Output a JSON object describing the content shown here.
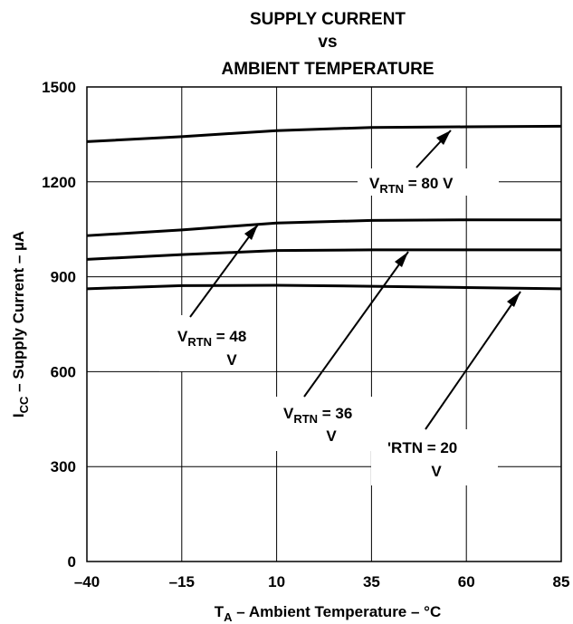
{
  "chart_data": {
    "type": "line",
    "title_lines": [
      "SUPPLY CURRENT",
      "vs",
      "AMBIENT TEMPERATURE"
    ],
    "xlabel": {
      "main": "T",
      "sub": "A",
      "rest": " – Ambient Temperature – °C"
    },
    "ylabel": {
      "main": "I",
      "sub": "CC",
      "rest": " – Supply Current – µA"
    },
    "xlim": [
      -40,
      85
    ],
    "ylim": [
      0,
      1500
    ],
    "xticks": [
      -40,
      -15,
      10,
      35,
      60,
      85
    ],
    "yticks": [
      0,
      300,
      600,
      900,
      1200,
      1500
    ],
    "xtick_labels": [
      "–40",
      "–15",
      "10",
      "35",
      "60",
      "85"
    ],
    "ytick_labels": [
      "0",
      "300",
      "600",
      "900",
      "1200",
      "1500"
    ],
    "grid": true,
    "series": [
      {
        "name": "VRTN = 80 V",
        "x": [
          -40,
          -15,
          10,
          35,
          60,
          85
        ],
        "y": [
          1327,
          1343,
          1362,
          1372,
          1374,
          1376
        ]
      },
      {
        "name": "VRTN = 48 V",
        "x": [
          -40,
          -15,
          10,
          35,
          60,
          85
        ],
        "y": [
          1030,
          1048,
          1070,
          1078,
          1080,
          1080
        ]
      },
      {
        "name": "VRTN = 36 V",
        "x": [
          -40,
          -15,
          10,
          35,
          60,
          85
        ],
        "y": [
          955,
          970,
          983,
          985,
          985,
          985
        ]
      },
      {
        "name": "VRTN = 20 V",
        "x": [
          -40,
          -15,
          10,
          35,
          60,
          85
        ],
        "y": [
          862,
          872,
          873,
          870,
          866,
          862
        ]
      }
    ],
    "annotations": [
      {
        "v": "V",
        "sub": "RTN",
        "rest": " = 80 V"
      },
      {
        "v": "V",
        "sub": "RTN",
        "rest": " = 48"
      },
      {
        "v": "V",
        "sub": "RTN",
        "rest": " = 36"
      },
      {
        "v": "",
        "sub": "",
        "rest": "'RTN = 20"
      }
    ],
    "annotation_units": [
      "",
      "V",
      "V",
      "V"
    ]
  }
}
